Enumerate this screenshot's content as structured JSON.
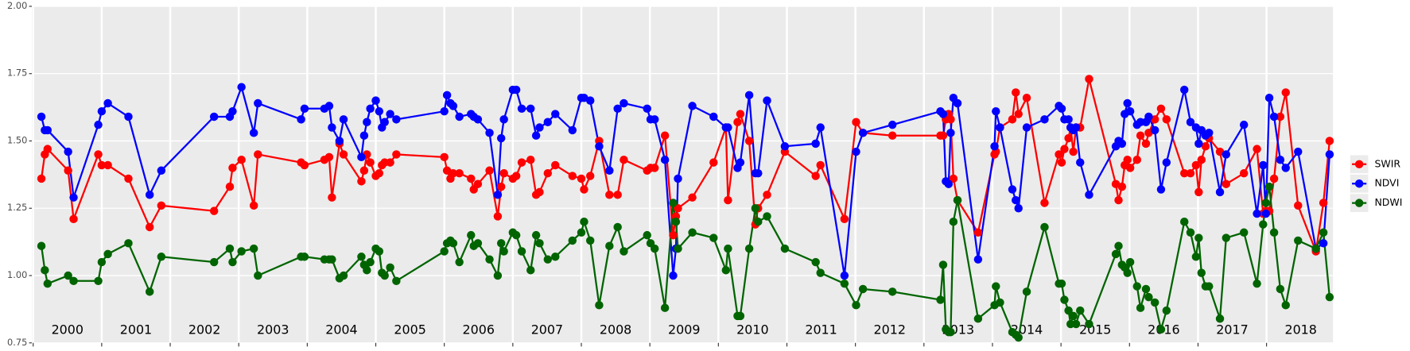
{
  "chart_data": {
    "type": "line",
    "x": [
      2000.12,
      2000.17,
      2000.21,
      2000.51,
      2000.59,
      2000.95,
      2001.0,
      2001.09,
      2001.39,
      2001.7,
      2001.87,
      2002.64,
      2002.87,
      2002.91,
      2003.04,
      2003.22,
      2003.28,
      2003.91,
      2003.96,
      2004.25,
      2004.32,
      2004.36,
      2004.47,
      2004.53,
      2004.79,
      2004.83,
      2004.87,
      2004.92,
      2005.0,
      2005.05,
      2005.09,
      2005.13,
      2005.21,
      2005.3,
      2006.0,
      2006.04,
      2006.09,
      2006.13,
      2006.22,
      2006.39,
      2006.43,
      2006.49,
      2006.66,
      2006.78,
      2006.83,
      2006.87,
      2007.0,
      2007.05,
      2007.13,
      2007.26,
      2007.34,
      2007.39,
      2007.51,
      2007.62,
      2007.87,
      2008.0,
      2008.04,
      2008.13,
      2008.26,
      2008.41,
      2008.53,
      2008.62,
      2008.96,
      2009.01,
      2009.07,
      2009.22,
      2009.34,
      2009.38,
      2009.41,
      2009.62,
      2009.93,
      2010.11,
      2010.14,
      2010.28,
      2010.32,
      2010.45,
      2010.54,
      2010.58,
      2010.71,
      2010.97,
      2011.42,
      2011.49,
      2011.84,
      2012.01,
      2012.11,
      2012.54,
      2013.24,
      2013.28,
      2013.32,
      2013.36,
      2013.39,
      2013.43,
      2013.49,
      2013.79,
      2014.03,
      2014.05,
      2014.11,
      2014.29,
      2014.34,
      2014.38,
      2014.5,
      2014.76,
      2014.97,
      2015.01,
      2015.05,
      2015.11,
      2015.14,
      2015.18,
      2015.22,
      2015.28,
      2015.41,
      2015.8,
      2015.84,
      2015.89,
      2015.93,
      2015.97,
      2016.01,
      2016.11,
      2016.16,
      2016.24,
      2016.28,
      2016.37,
      2016.46,
      2016.54,
      2016.8,
      2016.89,
      2016.97,
      2017.01,
      2017.05,
      2017.11,
      2017.16,
      2017.32,
      2017.41,
      2017.67,
      2017.86,
      2017.95,
      2017.99,
      2018.04,
      2018.11,
      2018.2,
      2018.28,
      2018.46,
      2018.72,
      2018.83,
      2018.92
    ],
    "series": [
      {
        "name": "SWIR",
        "color": "#ff0000",
        "values": [
          1.36,
          1.45,
          1.47,
          1.39,
          1.21,
          1.45,
          1.41,
          1.41,
          1.36,
          1.18,
          1.26,
          1.24,
          1.33,
          1.4,
          1.43,
          1.26,
          1.45,
          1.42,
          1.41,
          1.43,
          1.44,
          1.29,
          1.49,
          1.45,
          1.35,
          1.39,
          1.45,
          1.42,
          1.37,
          1.38,
          1.41,
          1.42,
          1.42,
          1.45,
          1.44,
          1.39,
          1.36,
          1.38,
          1.38,
          1.36,
          1.32,
          1.34,
          1.39,
          1.22,
          1.33,
          1.38,
          1.36,
          1.37,
          1.42,
          1.43,
          1.3,
          1.31,
          1.38,
          1.41,
          1.37,
          1.36,
          1.32,
          1.37,
          1.5,
          1.3,
          1.3,
          1.43,
          1.39,
          1.4,
          1.4,
          1.52,
          1.15,
          1.22,
          1.25,
          1.29,
          1.42,
          1.55,
          1.28,
          1.57,
          1.6,
          1.5,
          1.19,
          1.25,
          1.3,
          1.46,
          1.37,
          1.41,
          1.21,
          1.57,
          1.53,
          1.52,
          1.52,
          1.52,
          1.58,
          1.6,
          1.58,
          1.36,
          1.28,
          1.16,
          1.45,
          1.46,
          1.55,
          1.58,
          1.68,
          1.6,
          1.66,
          1.27,
          1.45,
          1.42,
          1.47,
          1.51,
          1.55,
          1.46,
          1.55,
          1.55,
          1.73,
          1.34,
          1.28,
          1.33,
          1.41,
          1.43,
          1.4,
          1.43,
          1.52,
          1.49,
          1.53,
          1.58,
          1.62,
          1.58,
          1.38,
          1.38,
          1.41,
          1.31,
          1.43,
          1.48,
          1.51,
          1.46,
          1.34,
          1.38,
          1.47,
          1.23,
          1.24,
          1.24,
          1.36,
          1.59,
          1.68,
          1.26,
          1.09,
          1.27,
          1.5
        ]
      },
      {
        "name": "NDVI",
        "color": "#0000ff",
        "values": [
          1.59,
          1.54,
          1.54,
          1.46,
          1.29,
          1.56,
          1.61,
          1.64,
          1.59,
          1.3,
          1.39,
          1.59,
          1.59,
          1.61,
          1.7,
          1.53,
          1.64,
          1.58,
          1.62,
          1.62,
          1.63,
          1.55,
          1.5,
          1.58,
          1.44,
          1.52,
          1.57,
          1.62,
          1.65,
          1.61,
          1.55,
          1.57,
          1.6,
          1.58,
          1.61,
          1.67,
          1.64,
          1.63,
          1.59,
          1.6,
          1.59,
          1.58,
          1.53,
          1.3,
          1.51,
          1.58,
          1.69,
          1.69,
          1.62,
          1.62,
          1.52,
          1.55,
          1.57,
          1.6,
          1.54,
          1.66,
          1.66,
          1.65,
          1.48,
          1.39,
          1.62,
          1.64,
          1.62,
          1.58,
          1.58,
          1.43,
          1.0,
          1.1,
          1.36,
          1.63,
          1.59,
          1.55,
          1.55,
          1.4,
          1.42,
          1.67,
          1.38,
          1.38,
          1.65,
          1.48,
          1.49,
          1.55,
          1.0,
          1.46,
          1.53,
          1.56,
          1.61,
          1.6,
          1.35,
          1.34,
          1.53,
          1.66,
          1.64,
          1.06,
          1.48,
          1.61,
          1.55,
          1.32,
          1.28,
          1.25,
          1.55,
          1.58,
          1.63,
          1.62,
          1.58,
          1.58,
          1.55,
          1.54,
          1.55,
          1.42,
          1.3,
          1.48,
          1.5,
          1.49,
          1.6,
          1.64,
          1.61,
          1.56,
          1.57,
          1.57,
          1.59,
          1.54,
          1.32,
          1.42,
          1.69,
          1.57,
          1.55,
          1.49,
          1.54,
          1.52,
          1.53,
          1.31,
          1.45,
          1.56,
          1.23,
          1.41,
          1.23,
          1.66,
          1.59,
          1.43,
          1.4,
          1.46,
          1.1,
          1.12,
          1.45
        ]
      },
      {
        "name": "NDWI",
        "color": "#006400",
        "values": [
          1.11,
          1.02,
          0.97,
          1.0,
          0.98,
          0.98,
          1.05,
          1.08,
          1.12,
          0.94,
          1.07,
          1.05,
          1.1,
          1.05,
          1.09,
          1.1,
          1.0,
          1.07,
          1.07,
          1.06,
          1.06,
          1.06,
          0.99,
          1.0,
          1.07,
          1.04,
          1.02,
          1.05,
          1.1,
          1.09,
          1.01,
          1.0,
          1.03,
          0.98,
          1.09,
          1.12,
          1.13,
          1.12,
          1.05,
          1.15,
          1.11,
          1.12,
          1.06,
          1.0,
          1.12,
          1.09,
          1.16,
          1.15,
          1.09,
          1.02,
          1.15,
          1.12,
          1.06,
          1.07,
          1.13,
          1.16,
          1.2,
          1.13,
          0.89,
          1.11,
          1.18,
          1.09,
          1.15,
          1.12,
          1.1,
          0.88,
          1.27,
          1.2,
          1.1,
          1.16,
          1.14,
          1.02,
          1.1,
          0.85,
          0.85,
          1.1,
          1.25,
          1.2,
          1.22,
          1.1,
          1.05,
          1.01,
          0.97,
          0.89,
          0.95,
          0.94,
          0.91,
          1.04,
          0.8,
          0.79,
          0.79,
          1.2,
          1.28,
          0.84,
          0.89,
          0.96,
          0.9,
          0.79,
          0.78,
          0.77,
          0.94,
          1.18,
          0.97,
          0.97,
          0.91,
          0.87,
          0.82,
          0.85,
          0.82,
          0.87,
          0.82,
          1.08,
          1.11,
          1.04,
          1.03,
          1.01,
          1.05,
          0.96,
          0.88,
          0.95,
          0.92,
          0.9,
          0.8,
          0.87,
          1.2,
          1.16,
          1.07,
          1.14,
          1.01,
          0.96,
          0.96,
          0.84,
          1.14,
          1.16,
          0.97,
          1.19,
          1.27,
          1.33,
          1.16,
          0.95,
          0.89,
          1.13,
          1.1,
          1.16,
          0.92
        ]
      }
    ],
    "xlim": [
      1999.98,
      2018.97
    ],
    "xticks": [
      2000,
      2001,
      2002,
      2003,
      2004,
      2005,
      2006,
      2007,
      2008,
      2009,
      2010,
      2011,
      2012,
      2013,
      2014,
      2015,
      2016,
      2017,
      2018
    ],
    "year_labels": [
      {
        "value": 2000.5,
        "label": "2000"
      },
      {
        "value": 2001.5,
        "label": "2001"
      },
      {
        "value": 2002.5,
        "label": "2002"
      },
      {
        "value": 2003.5,
        "label": "2003"
      },
      {
        "value": 2004.5,
        "label": "2004"
      },
      {
        "value": 2005.5,
        "label": "2005"
      },
      {
        "value": 2006.5,
        "label": "2006"
      },
      {
        "value": 2007.5,
        "label": "2007"
      },
      {
        "value": 2008.5,
        "label": "2008"
      },
      {
        "value": 2009.5,
        "label": "2009"
      },
      {
        "value": 2010.5,
        "label": "2010"
      },
      {
        "value": 2011.5,
        "label": "2011"
      },
      {
        "value": 2012.5,
        "label": "2012"
      },
      {
        "value": 2013.5,
        "label": "2013"
      },
      {
        "value": 2014.5,
        "label": "2014"
      },
      {
        "value": 2015.5,
        "label": "2015"
      },
      {
        "value": 2016.5,
        "label": "2016"
      },
      {
        "value": 2017.5,
        "label": "2017"
      },
      {
        "value": 2018.5,
        "label": "2018"
      }
    ],
    "ylim": [
      0.75,
      2.0
    ],
    "yticks": [
      0.75,
      {
        "value": 1.0,
        "label": "1.00"
      },
      1.25,
      {
        "value": 1.5,
        "label": "1.50"
      },
      1.75,
      {
        "value": 2.0,
        "label": "2.00"
      }
    ],
    "grid": true,
    "legend": "right"
  }
}
